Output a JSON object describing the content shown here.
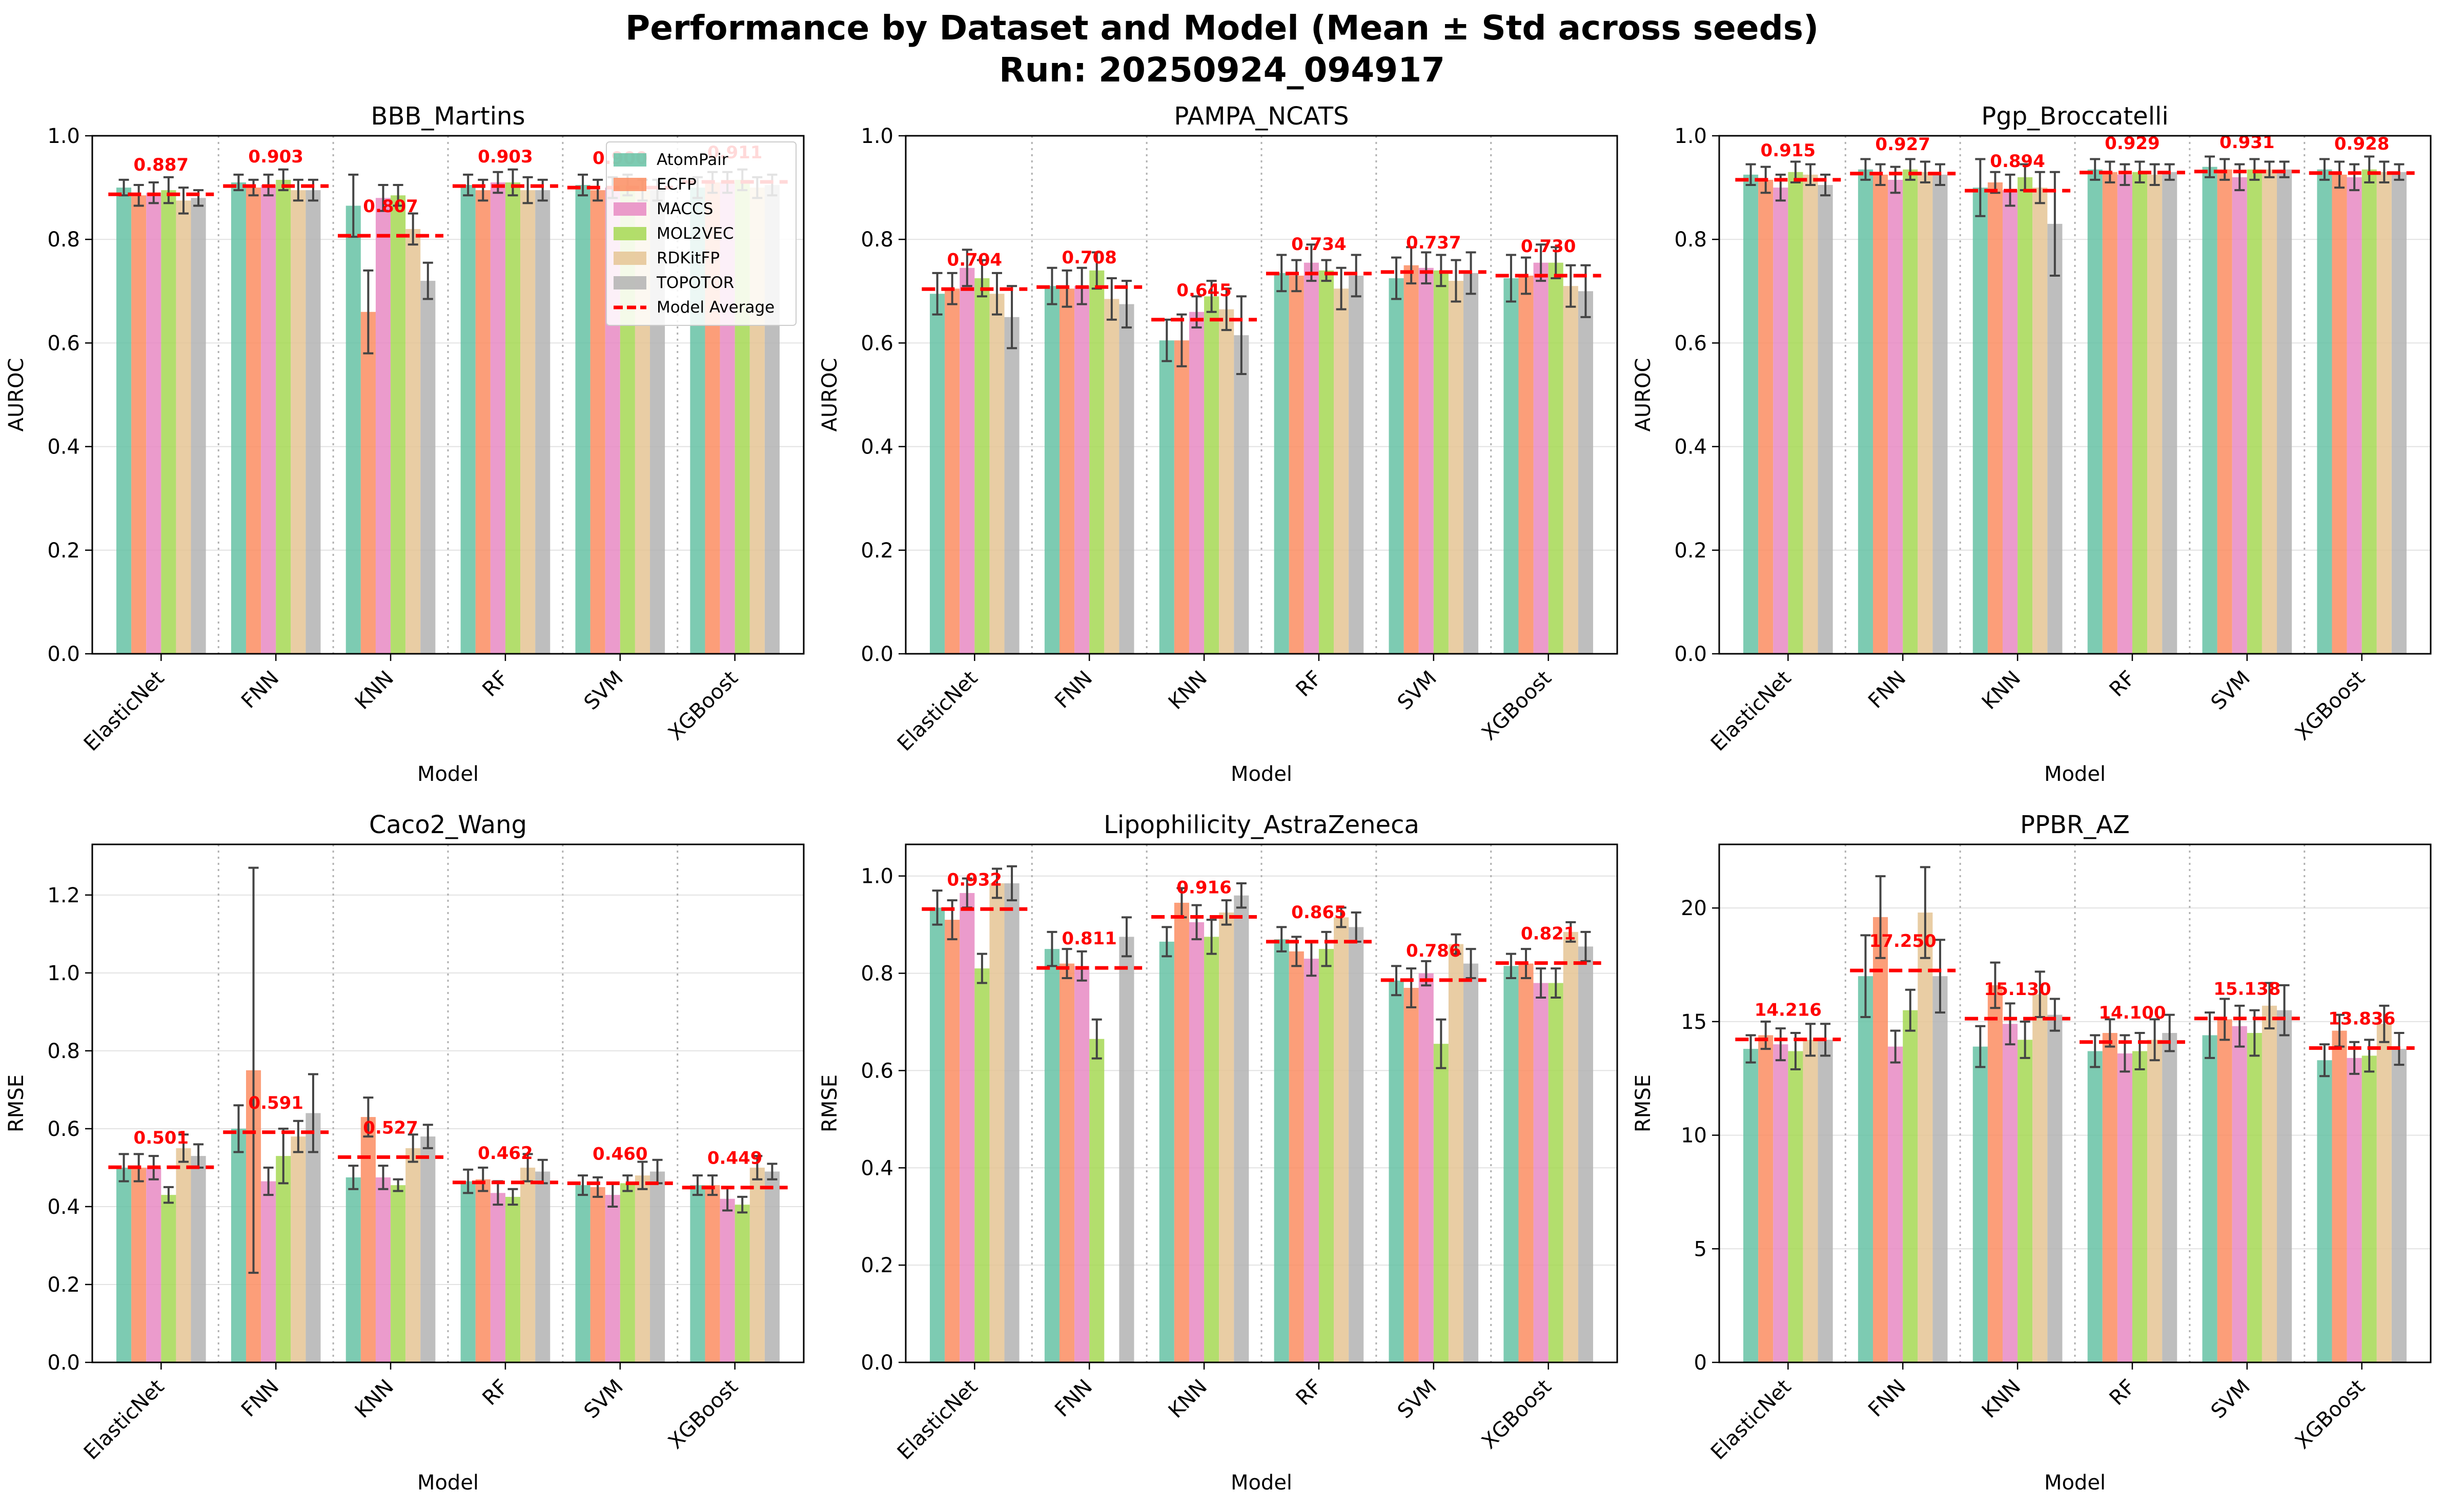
{
  "figure": {
    "title_line1": "Performance by Dataset and Model (Mean ± Std across seeds)",
    "title_line2": "Run: 20250924_094917"
  },
  "colors": {
    "AtomPair": "#66c2a5",
    "ECFP": "#fc8d62",
    "MACCS": "#e78ac3",
    "MOL2VEC": "#a6d854",
    "RDKitFP": "#e5c494",
    "TOPOTOR": "#b3b3b3",
    "average_line": "#ff0000"
  },
  "legend": {
    "entries": [
      "AtomPair",
      "ECFP",
      "MACCS",
      "MOL2VEC",
      "RDKitFP",
      "TOPOTOR",
      "Model Average"
    ],
    "placement": "top-right of first panel"
  },
  "chart_data": [
    {
      "type": "bar",
      "title": "BBB_Martins",
      "xlabel": "Model",
      "ylabel": "AUROC",
      "ylim": [
        0,
        1.0
      ],
      "yticks": [
        "0.0",
        "0.2",
        "0.4",
        "0.6",
        "0.8",
        "1.0"
      ],
      "grid": true,
      "show_legend": true,
      "categories": [
        "ElasticNet",
        "FNN",
        "KNN",
        "RF",
        "SVM",
        "XGBoost"
      ],
      "model_average_labels": [
        "0.887",
        "0.903",
        "0.807",
        "0.903",
        "0.900",
        "0.911"
      ],
      "model_average": [
        0.887,
        0.903,
        0.807,
        0.903,
        0.9,
        0.911
      ],
      "series": [
        {
          "name": "AtomPair",
          "values": [
            0.9,
            0.91,
            0.865,
            0.905,
            0.905,
            0.9
          ],
          "errors": [
            0.015,
            0.015,
            0.06,
            0.02,
            0.02,
            0.02
          ]
        },
        {
          "name": "ECFP",
          "values": [
            0.885,
            0.9,
            0.66,
            0.895,
            0.895,
            0.91
          ],
          "errors": [
            0.02,
            0.015,
            0.08,
            0.02,
            0.02,
            0.02
          ]
        },
        {
          "name": "MACCS",
          "values": [
            0.89,
            0.905,
            0.88,
            0.91,
            0.9,
            0.91
          ],
          "errors": [
            0.02,
            0.02,
            0.025,
            0.02,
            0.02,
            0.02
          ]
        },
        {
          "name": "MOL2VEC",
          "values": [
            0.895,
            0.915,
            0.885,
            0.91,
            0.905,
            0.915
          ],
          "errors": [
            0.025,
            0.02,
            0.02,
            0.025,
            0.02,
            0.02
          ]
        },
        {
          "name": "RDKitFP",
          "values": [
            0.875,
            0.895,
            0.82,
            0.895,
            0.895,
            0.9
          ],
          "errors": [
            0.025,
            0.02,
            0.03,
            0.025,
            0.02,
            0.02
          ]
        },
        {
          "name": "TOPOTOR",
          "values": [
            0.88,
            0.895,
            0.72,
            0.895,
            0.895,
            0.905
          ],
          "errors": [
            0.015,
            0.02,
            0.035,
            0.02,
            0.02,
            0.02
          ]
        }
      ]
    },
    {
      "type": "bar",
      "title": "PAMPA_NCATS",
      "xlabel": "Model",
      "ylabel": "AUROC",
      "ylim": [
        0,
        1.0
      ],
      "yticks": [
        "0.0",
        "0.2",
        "0.4",
        "0.6",
        "0.8",
        "1.0"
      ],
      "grid": true,
      "show_legend": false,
      "categories": [
        "ElasticNet",
        "FNN",
        "KNN",
        "RF",
        "SVM",
        "XGBoost"
      ],
      "model_average_labels": [
        "0.704",
        "0.708",
        "0.645",
        "0.734",
        "0.737",
        "0.730"
      ],
      "model_average": [
        0.704,
        0.708,
        0.645,
        0.734,
        0.737,
        0.73
      ],
      "series": [
        {
          "name": "AtomPair",
          "values": [
            0.695,
            0.71,
            0.605,
            0.735,
            0.725,
            0.725
          ],
          "errors": [
            0.04,
            0.035,
            0.04,
            0.035,
            0.04,
            0.045
          ]
        },
        {
          "name": "ECFP",
          "values": [
            0.705,
            0.705,
            0.605,
            0.73,
            0.75,
            0.73
          ],
          "errors": [
            0.03,
            0.035,
            0.05,
            0.03,
            0.035,
            0.035
          ]
        },
        {
          "name": "MACCS",
          "values": [
            0.745,
            0.71,
            0.66,
            0.755,
            0.745,
            0.755
          ],
          "errors": [
            0.035,
            0.035,
            0.03,
            0.035,
            0.03,
            0.035
          ]
        },
        {
          "name": "MOL2VEC",
          "values": [
            0.725,
            0.74,
            0.69,
            0.74,
            0.74,
            0.755
          ],
          "errors": [
            0.035,
            0.035,
            0.03,
            0.02,
            0.03,
            0.03
          ]
        },
        {
          "name": "RDKitFP",
          "values": [
            0.695,
            0.685,
            0.665,
            0.705,
            0.72,
            0.71
          ],
          "errors": [
            0.04,
            0.04,
            0.04,
            0.04,
            0.04,
            0.04
          ]
        },
        {
          "name": "TOPOTOR",
          "values": [
            0.65,
            0.675,
            0.615,
            0.73,
            0.735,
            0.7
          ],
          "errors": [
            0.06,
            0.045,
            0.075,
            0.04,
            0.04,
            0.05
          ]
        }
      ]
    },
    {
      "type": "bar",
      "title": "Pgp_Broccatelli",
      "xlabel": "Model",
      "ylabel": "AUROC",
      "ylim": [
        0,
        1.0
      ],
      "yticks": [
        "0.0",
        "0.2",
        "0.4",
        "0.6",
        "0.8",
        "1.0"
      ],
      "grid": true,
      "show_legend": false,
      "categories": [
        "ElasticNet",
        "FNN",
        "KNN",
        "RF",
        "SVM",
        "XGBoost"
      ],
      "model_average_labels": [
        "0.915",
        "0.927",
        "0.894",
        "0.929",
        "0.931",
        "0.928"
      ],
      "model_average": [
        0.915,
        0.927,
        0.894,
        0.929,
        0.931,
        0.928
      ],
      "series": [
        {
          "name": "AtomPair",
          "values": [
            0.925,
            0.935,
            0.9,
            0.935,
            0.94,
            0.935
          ],
          "errors": [
            0.02,
            0.02,
            0.055,
            0.02,
            0.02,
            0.02
          ]
        },
        {
          "name": "ECFP",
          "values": [
            0.915,
            0.925,
            0.91,
            0.93,
            0.935,
            0.925
          ],
          "errors": [
            0.025,
            0.02,
            0.02,
            0.02,
            0.02,
            0.025
          ]
        },
        {
          "name": "MACCS",
          "values": [
            0.9,
            0.915,
            0.895,
            0.925,
            0.92,
            0.92
          ],
          "errors": [
            0.025,
            0.025,
            0.03,
            0.02,
            0.025,
            0.025
          ]
        },
        {
          "name": "MOL2VEC",
          "values": [
            0.93,
            0.935,
            0.92,
            0.93,
            0.935,
            0.935
          ],
          "errors": [
            0.02,
            0.02,
            0.025,
            0.02,
            0.02,
            0.025
          ]
        },
        {
          "name": "RDKitFP",
          "values": [
            0.925,
            0.93,
            0.9,
            0.925,
            0.935,
            0.93
          ],
          "errors": [
            0.02,
            0.02,
            0.03,
            0.02,
            0.015,
            0.02
          ]
        },
        {
          "name": "TOPOTOR",
          "values": [
            0.905,
            0.925,
            0.83,
            0.93,
            0.935,
            0.93
          ],
          "errors": [
            0.02,
            0.02,
            0.1,
            0.015,
            0.015,
            0.015
          ]
        }
      ]
    },
    {
      "type": "bar",
      "title": "Caco2_Wang",
      "xlabel": "Model",
      "ylabel": "RMSE",
      "ylim": [
        0,
        1.33
      ],
      "yticks": [
        "0.0",
        "0.2",
        "0.4",
        "0.6",
        "0.8",
        "1.0",
        "1.2"
      ],
      "grid": true,
      "show_legend": false,
      "categories": [
        "ElasticNet",
        "FNN",
        "KNN",
        "RF",
        "SVM",
        "XGBoost"
      ],
      "model_average_labels": [
        "0.501",
        "0.591",
        "0.527",
        "0.462",
        "0.460",
        "0.449"
      ],
      "model_average": [
        0.501,
        0.591,
        0.527,
        0.462,
        0.46,
        0.449
      ],
      "series": [
        {
          "name": "AtomPair",
          "values": [
            0.5,
            0.6,
            0.475,
            0.465,
            0.455,
            0.455
          ],
          "errors": [
            0.035,
            0.06,
            0.03,
            0.03,
            0.025,
            0.025
          ]
        },
        {
          "name": "ECFP",
          "values": [
            0.5,
            0.75,
            0.63,
            0.47,
            0.45,
            0.455
          ],
          "errors": [
            0.035,
            0.52,
            0.05,
            0.03,
            0.025,
            0.025
          ]
        },
        {
          "name": "MACCS",
          "values": [
            0.5,
            0.465,
            0.475,
            0.435,
            0.43,
            0.42
          ],
          "errors": [
            0.03,
            0.035,
            0.03,
            0.03,
            0.03,
            0.03
          ]
        },
        {
          "name": "MOL2VEC",
          "values": [
            0.43,
            0.53,
            0.455,
            0.425,
            0.46,
            0.405
          ],
          "errors": [
            0.02,
            0.07,
            0.015,
            0.02,
            0.02,
            0.02
          ]
        },
        {
          "name": "RDKitFP",
          "values": [
            0.55,
            0.58,
            0.55,
            0.5,
            0.48,
            0.5
          ],
          "errors": [
            0.035,
            0.04,
            0.035,
            0.035,
            0.035,
            0.03
          ]
        },
        {
          "name": "TOPOTOR",
          "values": [
            0.53,
            0.64,
            0.58,
            0.49,
            0.49,
            0.49
          ],
          "errors": [
            0.03,
            0.1,
            0.03,
            0.03,
            0.03,
            0.02
          ]
        }
      ]
    },
    {
      "type": "bar",
      "title": "Lipophilicity_AstraZeneca",
      "xlabel": "Model",
      "ylabel": "RMSE",
      "ylim": [
        0,
        1.065
      ],
      "yticks": [
        "0.0",
        "0.2",
        "0.4",
        "0.6",
        "0.8",
        "1.0"
      ],
      "grid": true,
      "show_legend": false,
      "categories": [
        "ElasticNet",
        "FNN",
        "KNN",
        "RF",
        "SVM",
        "XGBoost"
      ],
      "model_average_labels": [
        "0.932",
        "0.811",
        "0.916",
        "0.865",
        "0.786",
        "0.821"
      ],
      "model_average": [
        0.932,
        0.811,
        0.916,
        0.865,
        0.786,
        0.821
      ],
      "series": [
        {
          "name": "AtomPair",
          "values": [
            0.935,
            0.85,
            0.865,
            0.87,
            0.785,
            0.815
          ],
          "errors": [
            0.035,
            0.035,
            0.03,
            0.025,
            0.03,
            0.025
          ]
        },
        {
          "name": "ECFP",
          "values": [
            0.91,
            0.82,
            0.945,
            0.845,
            0.77,
            0.82
          ],
          "errors": [
            0.04,
            0.03,
            0.03,
            0.03,
            0.04,
            0.03
          ]
        },
        {
          "name": "MACCS",
          "values": [
            0.965,
            0.815,
            0.905,
            0.83,
            0.8,
            0.78
          ],
          "errors": [
            0.03,
            0.03,
            0.035,
            0.035,
            0.025,
            0.03
          ]
        },
        {
          "name": "MOL2VEC",
          "values": [
            0.81,
            0.665,
            0.875,
            0.85,
            0.655,
            0.78
          ],
          "errors": [
            0.03,
            0.04,
            0.035,
            0.035,
            0.05,
            0.03
          ]
        },
        {
          "name": "RDKitFP",
          "values": [
            0.985,
            0.0,
            0.925,
            0.915,
            0.86,
            0.885
          ],
          "errors": [
            0.03,
            0.0,
            0.025,
            0.02,
            0.02,
            0.02
          ]
        },
        {
          "name": "TOPOTOR",
          "values": [
            0.985,
            0.875,
            0.96,
            0.895,
            0.82,
            0.855
          ],
          "errors": [
            0.035,
            0.04,
            0.025,
            0.03,
            0.03,
            0.03
          ]
        }
      ]
    },
    {
      "type": "bar",
      "title": "PPBR_AZ",
      "xlabel": "Model",
      "ylabel": "RMSE",
      "ylim": [
        0,
        22.8
      ],
      "yticks": [
        "0",
        "5",
        "10",
        "15",
        "20"
      ],
      "grid": true,
      "show_legend": false,
      "categories": [
        "ElasticNet",
        "FNN",
        "KNN",
        "RF",
        "SVM",
        "XGBoost"
      ],
      "model_average_labels": [
        "14.216",
        "17.250",
        "15.130",
        "14.100",
        "15.138",
        "13.836"
      ],
      "model_average": [
        14.216,
        17.25,
        15.13,
        14.1,
        15.138,
        13.836
      ],
      "series": [
        {
          "name": "AtomPair",
          "values": [
            13.8,
            17.0,
            13.9,
            13.7,
            14.4,
            13.3
          ],
          "errors": [
            0.6,
            1.8,
            0.9,
            0.7,
            1.0,
            0.7
          ]
        },
        {
          "name": "ECFP",
          "values": [
            14.4,
            19.6,
            16.6,
            14.5,
            15.1,
            14.6
          ],
          "errors": [
            0.6,
            1.8,
            1.0,
            0.6,
            0.9,
            0.7
          ]
        },
        {
          "name": "MACCS",
          "values": [
            14.0,
            13.9,
            14.9,
            13.6,
            14.8,
            13.4
          ],
          "errors": [
            0.7,
            0.7,
            0.9,
            0.8,
            0.9,
            0.7
          ]
        },
        {
          "name": "MOL2VEC",
          "values": [
            13.7,
            15.5,
            14.2,
            13.7,
            14.5,
            13.5
          ],
          "errors": [
            0.8,
            0.9,
            0.8,
            0.8,
            1.0,
            0.7
          ]
        },
        {
          "name": "RDKitFP",
          "values": [
            14.2,
            19.8,
            16.2,
            14.2,
            15.7,
            14.9
          ],
          "errors": [
            0.7,
            2.0,
            1.0,
            0.9,
            1.0,
            0.8
          ]
        },
        {
          "name": "TOPOTOR",
          "values": [
            14.2,
            17.0,
            15.3,
            14.5,
            15.5,
            13.8
          ],
          "errors": [
            0.7,
            1.6,
            0.7,
            0.8,
            1.1,
            0.7
          ]
        }
      ]
    }
  ]
}
